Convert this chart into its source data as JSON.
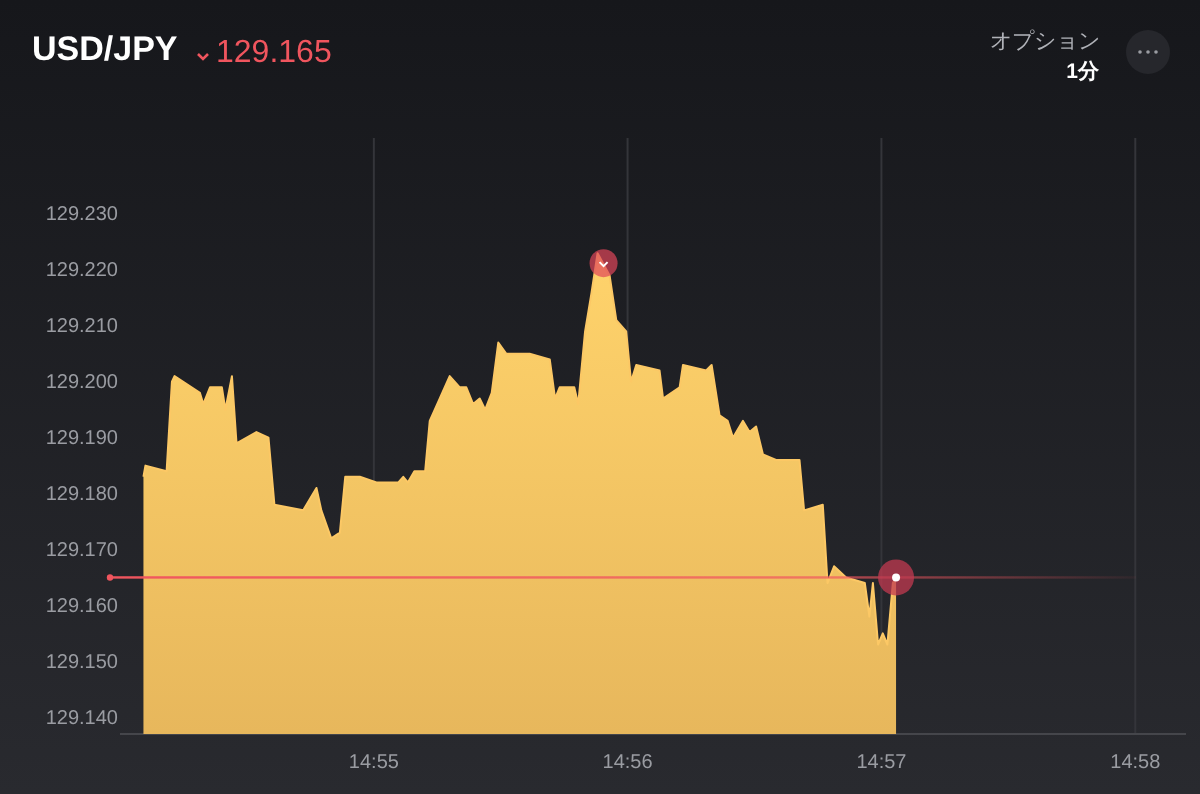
{
  "chart_data": {
    "type": "area",
    "title": "USD/JPY",
    "subtitle": "129.165",
    "annotations": [
      "オプション",
      "1分"
    ],
    "x": [
      14.90154,
      14.90167,
      14.90306,
      14.90341,
      14.90358,
      14.90525,
      14.90547,
      14.90591,
      14.90669,
      14.90692,
      14.90735,
      14.90765,
      14.90896,
      14.90975,
      14.91014,
      14.91203,
      14.9129,
      14.91322,
      14.91387,
      14.91444,
      14.91479,
      14.91575,
      14.91684,
      14.91828,
      14.9186,
      14.9189,
      14.91933,
      14.92004,
      14.92034,
      14.921,
      14.92165,
      14.92231,
      14.92274,
      14.92319,
      14.92362,
      14.92398,
      14.92441,
      14.92484,
      14.92537,
      14.9269,
      14.92822,
      14.92857,
      14.92887,
      14.92983,
      14.93009,
      14.93054,
      14.93097,
      14.93136,
      14.93215,
      14.93259,
      14.93324,
      14.93356,
      14.9339,
      14.93543,
      14.93566,
      14.93675,
      14.93697,
      14.93849,
      14.93885,
      14.93937,
      14.9399,
      14.94025,
      14.94091,
      14.94134,
      14.94177,
      14.94222,
      14.94308,
      14.94462,
      14.94492,
      14.94615,
      14.94646,
      14.94689,
      14.94768,
      14.94891,
      14.94921,
      14.94944,
      14.94978,
      14.95009,
      14.95039,
      14.95075,
      14.95096
    ],
    "series": [
      {
        "color": "#fcc865",
        "values": [
          129.183,
          129.185,
          129.184,
          129.2,
          129.201,
          129.198,
          129.196,
          129.199,
          129.199,
          129.195,
          129.201,
          129.189,
          129.191,
          129.19,
          129.178,
          129.177,
          129.181,
          129.177,
          129.172,
          129.173,
          129.183,
          129.183,
          129.182,
          129.182,
          129.183,
          129.182,
          129.184,
          129.184,
          129.193,
          129.197,
          129.201,
          129.199,
          129.199,
          129.196,
          129.197,
          129.195,
          129.198,
          129.207,
          129.205,
          129.205,
          129.204,
          129.197,
          129.199,
          129.199,
          129.196,
          129.209,
          129.216,
          129.223,
          129.219,
          129.211,
          129.209,
          129.2,
          129.203,
          129.202,
          129.197,
          129.199,
          129.203,
          129.202,
          129.203,
          129.194,
          129.193,
          129.19,
          129.193,
          129.191,
          129.192,
          129.187,
          129.186,
          129.186,
          129.177,
          129.178,
          129.164,
          129.167,
          129.165,
          129.164,
          129.158,
          129.164,
          129.153,
          129.155,
          129.153,
          129.164,
          129.165
        ]
      }
    ],
    "xlim": [
      14.9,
      14.97
    ],
    "ylim": [
      129.137,
      129.23
    ],
    "xticks": [
      {
        "value": 14.91667,
        "label": "14:55"
      },
      {
        "value": 14.93333,
        "label": "14:56"
      },
      {
        "value": 14.95,
        "label": "14:57"
      },
      {
        "value": 14.96667,
        "label": "14:58"
      }
    ],
    "yticks": [
      {
        "value": 129.14,
        "label": "129.140"
      },
      {
        "value": 129.15,
        "label": "129.150"
      },
      {
        "value": 129.16,
        "label": "129.160"
      },
      {
        "value": 129.17,
        "label": "129.170"
      },
      {
        "value": 129.18,
        "label": "129.180"
      },
      {
        "value": 129.19,
        "label": "129.190"
      },
      {
        "value": 129.2,
        "label": "129.200"
      },
      {
        "value": 129.21,
        "label": "129.210"
      },
      {
        "value": 129.22,
        "label": "129.220"
      },
      {
        "value": 129.23,
        "label": "129.230"
      }
    ],
    "grid": "x",
    "marker": "none",
    "ref_lines": [
      {
        "axis": "y",
        "value": 129.165,
        "color": "#f0555e"
      }
    ]
  }
}
